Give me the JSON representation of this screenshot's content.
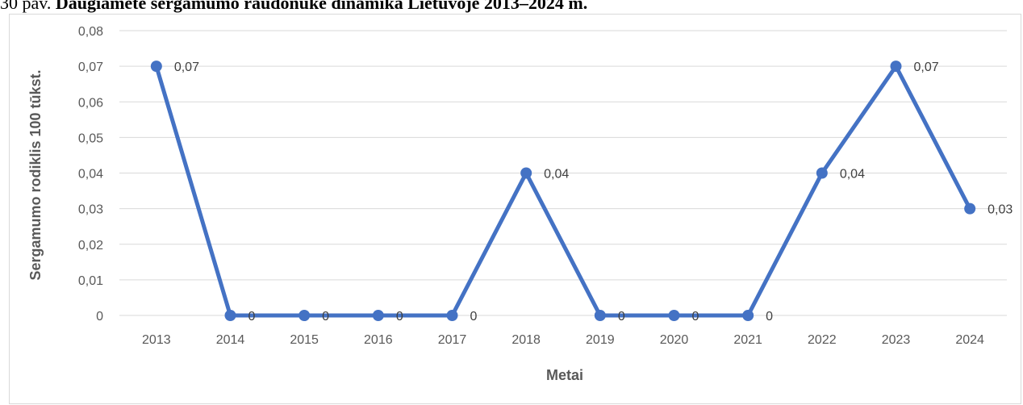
{
  "caption": {
    "prefix": "30 pav.",
    "title": "Daugiametė sergamumo raudonuke dinamika Lietuvoje 2013–2024 m."
  },
  "chart_data": {
    "type": "line",
    "title": "Daugiametė sergamumo raudonuke dinamika Lietuvoje 2013–2024 m.",
    "xlabel": "Metai",
    "ylabel": "Sergamumo rodiklis 100 tūkst.",
    "ylim": [
      0,
      0.08
    ],
    "yticks": [
      "0",
      "0,01",
      "0,02",
      "0,03",
      "0,04",
      "0,05",
      "0,06",
      "0,07",
      "0,08"
    ],
    "grid": true,
    "legend": "none",
    "categories": [
      "2013",
      "2014",
      "2015",
      "2016",
      "2017",
      "2018",
      "2019",
      "2020",
      "2021",
      "2022",
      "2023",
      "2024"
    ],
    "series": [
      {
        "values": [
          0.07,
          0,
          0,
          0,
          0,
          0.04,
          0,
          0,
          0,
          0.04,
          0.07,
          0.03
        ],
        "labels": [
          "0,07",
          "0",
          "0",
          "0",
          "0",
          "0,04",
          "0",
          "0",
          "0",
          "0,04",
          "0,07",
          "0,03"
        ],
        "color": "#4472c4"
      }
    ]
  }
}
